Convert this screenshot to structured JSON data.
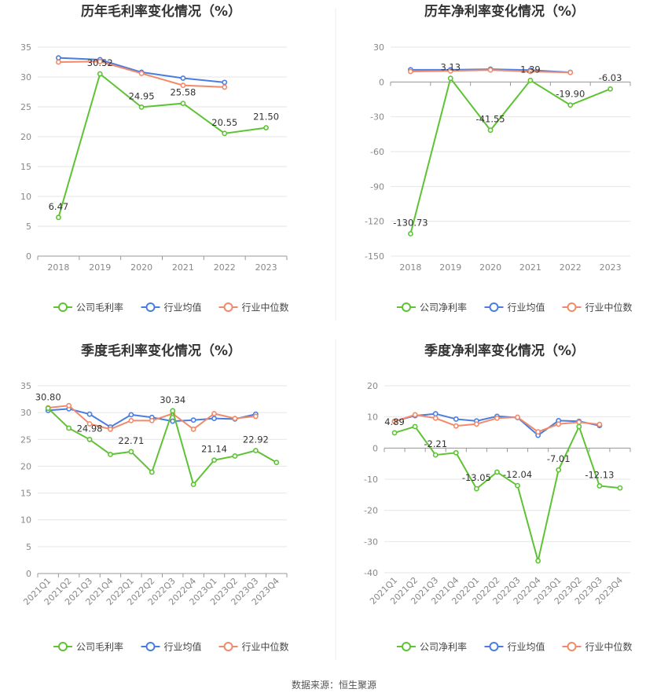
{
  "source_text": "数据来源：恒生聚源",
  "colors": {
    "company": "#5ec334",
    "industry_avg": "#4a7de0",
    "industry_median": "#f08a6a",
    "grid": "#e6e6e6",
    "axis": "#999999"
  },
  "chart_data": [
    {
      "type": "line",
      "title": "历年毛利率变化情况（%）",
      "categories": [
        "2018",
        "2019",
        "2020",
        "2021",
        "2022",
        "2023"
      ],
      "ylim": [
        0,
        35
      ],
      "yticks": [
        0,
        5,
        10,
        15,
        20,
        25,
        30,
        35
      ],
      "legend_position": "bottom",
      "series": [
        {
          "name": "公司毛利率",
          "key": "company",
          "values": [
            6.47,
            30.52,
            24.95,
            25.58,
            20.55,
            21.5
          ],
          "labels": [
            "6.47",
            "30.52",
            "24.95",
            "25.58",
            "20.55",
            "21.50"
          ]
        },
        {
          "name": "行业均值",
          "key": "industry_avg",
          "values": [
            33.2,
            32.9,
            30.8,
            29.8,
            29.1,
            null
          ]
        },
        {
          "name": "行业中位数",
          "key": "industry_median",
          "values": [
            32.5,
            32.6,
            30.6,
            28.6,
            28.3,
            null
          ]
        }
      ]
    },
    {
      "type": "line",
      "title": "历年净利率变化情况（%）",
      "categories": [
        "2018",
        "2019",
        "2020",
        "2021",
        "2022",
        "2023"
      ],
      "ylim": [
        -150,
        30
      ],
      "yticks": [
        -150,
        -120,
        -90,
        -60,
        -30,
        0,
        30
      ],
      "legend_position": "bottom",
      "series": [
        {
          "name": "公司净利率",
          "key": "company",
          "values": [
            -130.73,
            3.13,
            -41.55,
            1.39,
            -19.9,
            -6.03
          ],
          "labels": [
            "-130.73",
            "3.13",
            "-41.55",
            "1.39",
            "-19.90",
            "-6.03"
          ]
        },
        {
          "name": "行业均值",
          "key": "industry_avg",
          "values": [
            10.5,
            10.5,
            11.0,
            10.2,
            8.3,
            null
          ]
        },
        {
          "name": "行业中位数",
          "key": "industry_median",
          "values": [
            9.0,
            9.5,
            10.3,
            9.0,
            8.2,
            null
          ]
        }
      ]
    },
    {
      "type": "line",
      "title": "季度毛利率变化情况（%）",
      "categories": [
        "2021Q1",
        "2021Q2",
        "2021Q3",
        "2021Q4",
        "2022Q1",
        "2022Q2",
        "2022Q3",
        "2022Q4",
        "2023Q1",
        "2023Q2",
        "2023Q3",
        "2023Q4"
      ],
      "ylim": [
        0,
        35
      ],
      "yticks": [
        0,
        5,
        10,
        15,
        20,
        25,
        30,
        35
      ],
      "legend_position": "bottom",
      "series": [
        {
          "name": "公司毛利率",
          "key": "company",
          "values": [
            30.8,
            27.1,
            24.98,
            22.2,
            22.71,
            18.9,
            30.34,
            16.6,
            21.14,
            21.9,
            22.92,
            20.7
          ],
          "labels": [
            "30.80",
            null,
            "24.98",
            null,
            "22.71",
            null,
            "30.34",
            null,
            "21.14",
            null,
            "22.92",
            null
          ]
        },
        {
          "name": "行业均值",
          "key": "industry_avg",
          "values": [
            30.4,
            30.7,
            29.7,
            27.3,
            29.6,
            29.1,
            28.4,
            28.6,
            28.9,
            28.8,
            29.7,
            null
          ]
        },
        {
          "name": "行业中位数",
          "key": "industry_median",
          "values": [
            30.9,
            31.3,
            27.9,
            26.9,
            28.5,
            28.5,
            29.8,
            26.9,
            29.8,
            28.9,
            29.3,
            null
          ]
        }
      ]
    },
    {
      "type": "line",
      "title": "季度净利率变化情况（%）",
      "categories": [
        "2021Q1",
        "2021Q2",
        "2021Q3",
        "2021Q4",
        "2022Q1",
        "2022Q2",
        "2022Q3",
        "2022Q4",
        "2023Q1",
        "2023Q2",
        "2023Q3",
        "2023Q4"
      ],
      "ylim": [
        -40,
        20
      ],
      "yticks": [
        -40,
        -30,
        -20,
        -10,
        0,
        10,
        20
      ],
      "legend_position": "bottom",
      "series": [
        {
          "name": "公司净利率",
          "key": "company",
          "values": [
            4.89,
            6.9,
            -2.21,
            -1.5,
            -13.05,
            -7.7,
            -12.04,
            -36.2,
            -7.01,
            6.9,
            -12.13,
            -12.8
          ],
          "labels": [
            "4.89",
            null,
            "-2.21",
            null,
            "-13.05",
            null,
            "-12.04",
            null,
            "-7.01",
            null,
            "-12.13",
            null
          ]
        },
        {
          "name": "行业均值",
          "key": "industry_avg",
          "values": [
            8.6,
            10.4,
            11.0,
            9.3,
            8.7,
            10.2,
            9.8,
            4.1,
            8.8,
            8.6,
            7.2,
            null
          ]
        },
        {
          "name": "行业中位数",
          "key": "industry_median",
          "values": [
            8.5,
            10.7,
            9.6,
            7.1,
            7.7,
            9.6,
            9.9,
            5.2,
            7.7,
            8.3,
            7.6,
            null
          ]
        }
      ]
    }
  ]
}
